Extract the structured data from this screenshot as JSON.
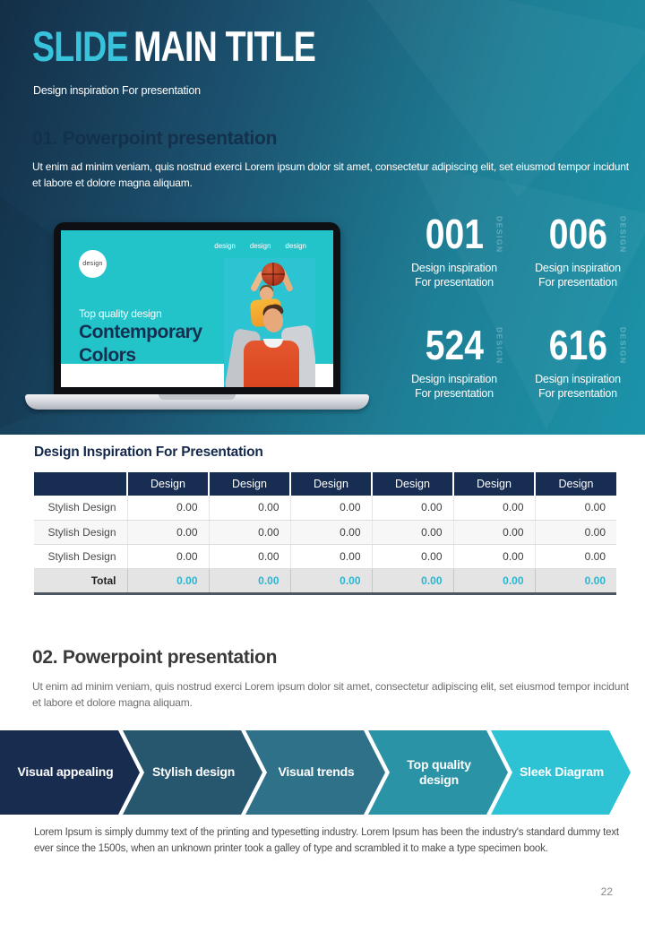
{
  "header": {
    "title_accent": "SLIDE",
    "title_rest": "MAIN TITLE",
    "subtitle": "Design inspiration For presentation"
  },
  "sections": {
    "one": {
      "heading": "01. Powerpoint presentation",
      "body": "Ut enim ad minim veniam, quis nostrud exerci  Lorem ipsum dolor sit amet, consectetur adipiscing elit, set eiusmod tempor incidunt et labore et dolore magna aliquam."
    },
    "two": {
      "heading": "02. Powerpoint presentation",
      "body": "Ut enim ad minim veniam, quis nostrud exerci  Lorem ipsum dolor sit amet, consectetur adipiscing elit, set eiusmod tempor incidunt et labore et dolore magna aliquam."
    }
  },
  "laptop": {
    "logo_text": "design",
    "nav": [
      "design",
      "design",
      "design"
    ],
    "tagline": "Top quality design",
    "headline_line1": "Contemporary",
    "headline_line2": "Colors"
  },
  "stats": [
    {
      "value": "001",
      "watermark": "DESIGN",
      "label_line1": "Design inspiration",
      "label_line2": "For presentation"
    },
    {
      "value": "006",
      "watermark": "DESIGN",
      "label_line1": "Design inspiration",
      "label_line2": "For presentation"
    },
    {
      "value": "524",
      "watermark": "DESIGN",
      "label_line1": "Design inspiration",
      "label_line2": "For presentation"
    },
    {
      "value": "616",
      "watermark": "DESIGN",
      "label_line1": "Design inspiration",
      "label_line2": "For presentation"
    }
  ],
  "table": {
    "title": "Design Inspiration For Presentation",
    "header": [
      "Design",
      "Design",
      "Design",
      "Design",
      "Design",
      "Design"
    ],
    "rows": [
      {
        "label": "Stylish Design",
        "values": [
          "0.00",
          "0.00",
          "0.00",
          "0.00",
          "0.00",
          "0.00"
        ]
      },
      {
        "label": "Stylish Design",
        "values": [
          "0.00",
          "0.00",
          "0.00",
          "0.00",
          "0.00",
          "0.00"
        ]
      },
      {
        "label": "Stylish Design",
        "values": [
          "0.00",
          "0.00",
          "0.00",
          "0.00",
          "0.00",
          "0.00"
        ]
      }
    ],
    "total": {
      "label": "Total",
      "values": [
        "0.00",
        "0.00",
        "0.00",
        "0.00",
        "0.00",
        "0.00"
      ]
    }
  },
  "process": {
    "steps": [
      {
        "label": "Visual appealing",
        "color": "#172c4e"
      },
      {
        "label": "Stylish design",
        "color": "#27566f"
      },
      {
        "label": "Visual trends",
        "color": "#2f7189"
      },
      {
        "label": "Top quality design",
        "color": "#2a93a6"
      },
      {
        "label": "Sleek Diagram",
        "color": "#2dc2d4"
      }
    ]
  },
  "footer": {
    "body": "Lorem Ipsum is simply dummy text of the printing and typesetting industry. Lorem Ipsum has been the industry's standard dummy text ever since the 1500s, when an unknown printer took a galley of type and scrambled it to make a type specimen book.",
    "page_number": "22"
  },
  "colors": {
    "accent_cyan": "#38c3dc",
    "navy": "#16304f",
    "table_header_bg": "#182d52",
    "total_value_cyan": "#2ab5d2",
    "hero_gradient_start": "#142e47",
    "hero_gradient_end": "#1b93a9",
    "screen_teal": "#22c4ca"
  }
}
